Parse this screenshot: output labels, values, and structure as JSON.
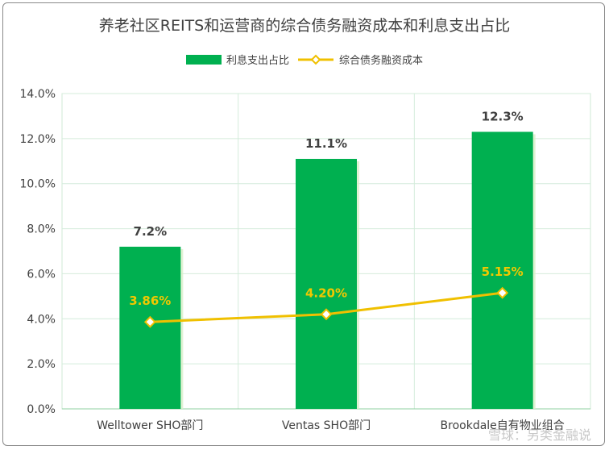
{
  "chart_data": {
    "type": "bar",
    "title": "养老社区REITS和运营商的综合债务融资成本和利息支出占比",
    "categories": [
      "Welltower SHO部门",
      "Ventas SHO部门",
      "Brookdale自有物业组合"
    ],
    "series": [
      {
        "name": "利息支出占比",
        "type": "bar",
        "values": [
          7.2,
          11.1,
          12.3
        ],
        "labels": [
          "7.2%",
          "11.1%",
          "12.3%"
        ],
        "color": "#00b050"
      },
      {
        "name": "综合债务融资成本",
        "type": "line",
        "values": [
          3.86,
          4.2,
          5.15
        ],
        "labels": [
          "3.86%",
          "4.20%",
          "5.15%"
        ],
        "color": "#f0c000"
      }
    ],
    "ylim": [
      0,
      14
    ],
    "yticks": [
      "0.0%",
      "2.0%",
      "4.0%",
      "6.0%",
      "8.0%",
      "10.0%",
      "12.0%",
      "14.0%"
    ],
    "ytick_values": [
      0,
      2,
      4,
      6,
      8,
      10,
      12,
      14
    ],
    "legend": "top",
    "grid": true
  },
  "watermark": "雪球：另类金融说"
}
